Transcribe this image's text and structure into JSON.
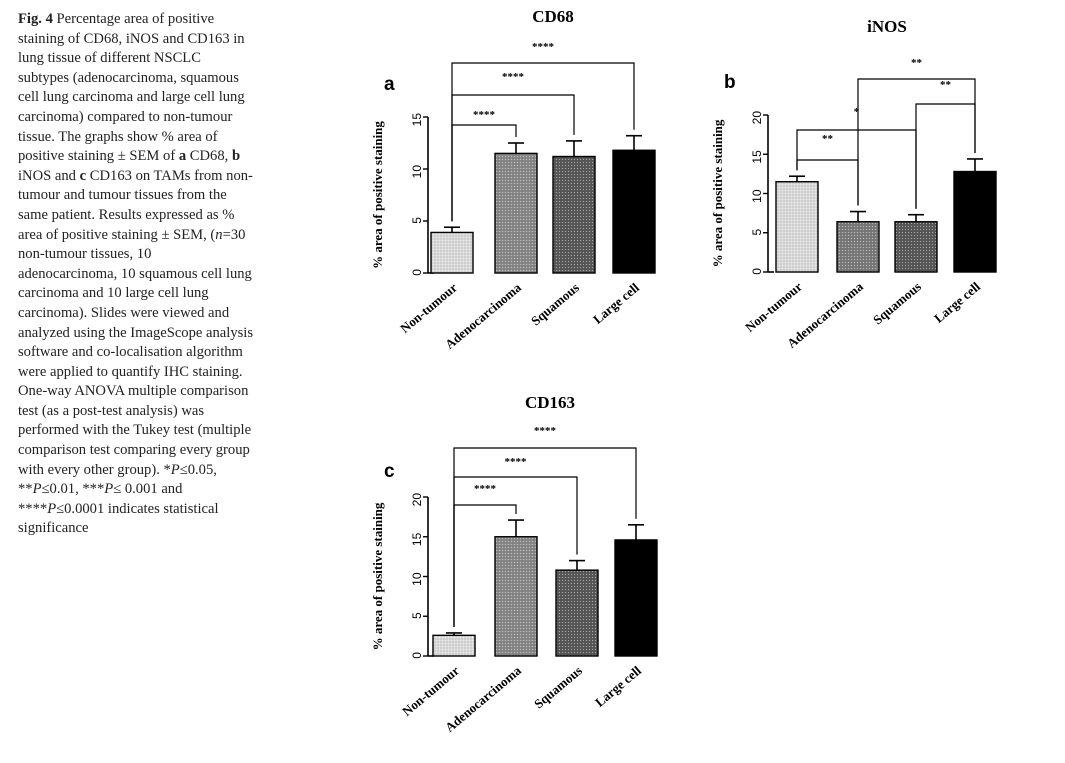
{
  "caption": {
    "fig_label": "Fig. 4",
    "t1": " Percentage area of positive staining of CD68, iNOS and CD163 in lung tissue of different NSCLC subtypes (adenocarcinoma, squamous cell lung carcinoma and large cell lung carcinoma) compared to non-tumour tissue. The graphs show % area of positive staining ± SEM of ",
    "a": "a",
    "t2": " CD68, ",
    "b": "b",
    "t3": " iNOS and ",
    "c": "c",
    "t4": " CD163 on TAMs from non-tumour and tumour tissues from the same patient. Results expressed as % area of positive staining ± SEM, (",
    "n": "n",
    "t5": "=30 non-tumour tissues, 10 adenocarcinoma, 10 squamous cell lung carcinoma and 10 large cell lung carcinoma). Slides were viewed and analyzed using the ImageScope analysis software and co-localisation algorithm were applied to quantify IHC staining. One-way ANOVA multiple comparison test (as a post-test analysis) was performed with the Tukey test (multiple comparison test comparing every group with every other group). *",
    "p1": "P",
    "t6": "≤0.05, **",
    "p2": "P",
    "t7": "≤0.01, ***",
    "p3": "P",
    "t8": "≤ 0.001 and ****",
    "p4": "P",
    "t9": "≤0.0001 indicates statistical significance"
  },
  "chart_data": [
    {
      "type": "bar",
      "panel": "a",
      "title": "CD68",
      "ylabel": "% area of positive staining",
      "categories": [
        "Non-tumour",
        "Adenocarcinoma",
        "Squamous",
        "Large cell"
      ],
      "values": [
        3.9,
        11.5,
        11.2,
        11.8
      ],
      "errors": [
        0.5,
        1.0,
        1.5,
        1.4
      ],
      "ylim": [
        0,
        15
      ],
      "yticks": [
        "0",
        "5",
        "10",
        "15"
      ],
      "fills": [
        "#dcdcdc",
        "#8a8a8a",
        "#5a5a5a",
        "#000000"
      ],
      "significance": [
        {
          "from": 0,
          "to": 1,
          "label": "****"
        },
        {
          "from": 0,
          "to": 2,
          "label": "****"
        },
        {
          "from": 0,
          "to": 3,
          "label": "****"
        }
      ]
    },
    {
      "type": "bar",
      "panel": "b",
      "title": "iNOS",
      "ylabel": "% area of positive staining",
      "categories": [
        "Non-tumour",
        "Adenocarcinoma",
        "Squamous",
        "Large cell"
      ],
      "values": [
        11.5,
        6.4,
        6.4,
        12.8
      ],
      "errors": [
        0.7,
        1.3,
        0.9,
        1.6
      ],
      "ylim": [
        0,
        20
      ],
      "yticks": [
        "0",
        "5",
        "10",
        "15",
        "20"
      ],
      "fills": [
        "#dcdcdc",
        "#7c7c7c",
        "#5a5a5a",
        "#000000"
      ],
      "significance": [
        {
          "from": 0,
          "to": 1,
          "label": "**"
        },
        {
          "from": 0,
          "to": 2,
          "label": "*"
        },
        {
          "from": 2,
          "to": 3,
          "label": "**"
        },
        {
          "from": 1,
          "to": 3,
          "label": "**"
        }
      ]
    },
    {
      "type": "bar",
      "panel": "c",
      "title": "CD163",
      "ylabel": "% area of positive staining",
      "categories": [
        "Non-tumour",
        "Adenocarcinoma",
        "Squamous",
        "Large cell"
      ],
      "values": [
        2.6,
        15.0,
        10.8,
        14.6
      ],
      "errors": [
        0.3,
        2.1,
        1.2,
        1.9
      ],
      "ylim": [
        0,
        20
      ],
      "yticks": [
        "0",
        "5",
        "10",
        "15",
        "20"
      ],
      "fills": [
        "#dcdcdc",
        "#8a8a8a",
        "#5a5a5a",
        "#000000"
      ],
      "significance": [
        {
          "from": 0,
          "to": 1,
          "label": "****"
        },
        {
          "from": 0,
          "to": 2,
          "label": "****"
        },
        {
          "from": 0,
          "to": 3,
          "label": "****"
        }
      ]
    }
  ]
}
